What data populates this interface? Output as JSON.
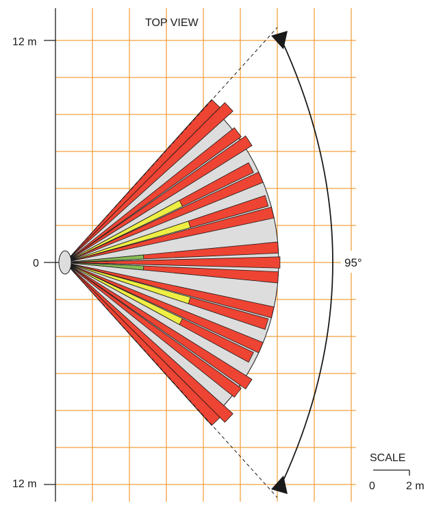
{
  "title": "TOP VIEW",
  "axis": {
    "top_label": "12 m",
    "center_label": "0",
    "bottom_label": "12 m"
  },
  "angle_label": "95°",
  "scale": {
    "title": "SCALE",
    "start_label": "0",
    "end_label": "2 m"
  },
  "colors": {
    "grid": "#f0a040",
    "zone_far": "#ee4433",
    "zone_mid": "#eeee44",
    "zone_near": "#88bb55",
    "coverage": "#dddddd",
    "outline": "#1a1a1a"
  },
  "pattern": {
    "zones_description": "Motion sensor detection fingers in red, yellow and green over grey coverage area"
  }
}
